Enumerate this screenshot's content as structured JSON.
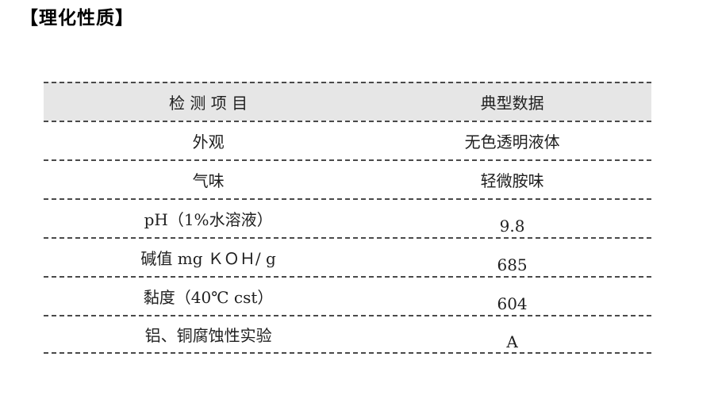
{
  "page": {
    "title": "【理化性质】"
  },
  "table": {
    "headers": {
      "item": "检 测 项 目",
      "value": "典型数据"
    },
    "rows": [
      {
        "label": "外观",
        "value": "无色透明液体"
      },
      {
        "label": "气味",
        "value": "轻微胺味"
      },
      {
        "label": "pH（1%水溶液）",
        "value": "9.8"
      },
      {
        "label": "碱值 mg ＫＯＨ/ g",
        "value": "685"
      },
      {
        "label": "黏度（40℃ cst）",
        "value": "604"
      },
      {
        "label": "铝、铜腐蚀性实验",
        "value": "A"
      }
    ],
    "colors": {
      "header_bg": "#e6e6e6",
      "border_dash": "#4a4a4a",
      "text": "#1f1f1f"
    }
  }
}
